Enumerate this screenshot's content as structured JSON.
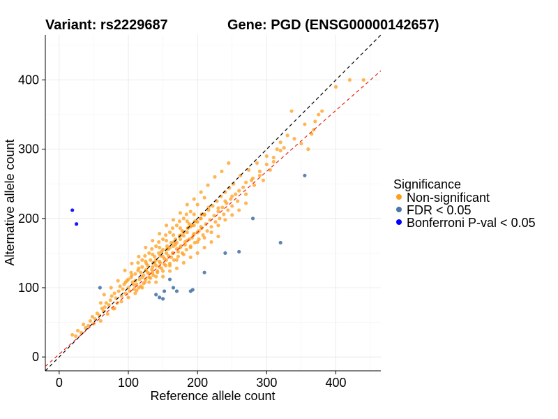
{
  "titles": {
    "variant": "Variant: rs2229687",
    "gene": "Gene: PGD (ENSG00000142657)"
  },
  "chart_data": {
    "type": "scatter",
    "xlabel": "Reference allele count",
    "ylabel": "Alternative allele count",
    "xlim": [
      -20,
      465
    ],
    "ylim": [
      -20,
      465
    ],
    "x_ticks": [
      0,
      100,
      200,
      300,
      400
    ],
    "y_ticks": [
      0,
      100,
      200,
      300,
      400
    ],
    "x_tick_labels": [
      "0",
      "100",
      "200",
      "300",
      "400"
    ],
    "y_tick_labels": [
      "0",
      "100",
      "200",
      "300",
      "400"
    ],
    "grid": true,
    "legend": {
      "title": "Significance",
      "position": "right",
      "entries": [
        "Non-significant",
        "FDR < 0.05",
        "Bonferroni P-val < 0.05"
      ]
    },
    "colors": {
      "Non-significant": "#FF9E1B",
      "FDR < 0.05": "#4A77A8",
      "Bonferroni P-val < 0.05": "#0000FF",
      "identity_line": "#000000",
      "fit_line": "#E8231A"
    },
    "reference_lines": [
      {
        "type": "identity",
        "slope": 1.0,
        "intercept": 0,
        "style": "dashed",
        "color": "#000000"
      },
      {
        "type": "fit",
        "slope": 0.88,
        "intercept": 4,
        "style": "dashed",
        "color": "#E8231A"
      }
    ],
    "series": [
      {
        "name": "Non-significant",
        "points": [
          [
            19,
            32
          ],
          [
            24,
            30
          ],
          [
            27,
            38
          ],
          [
            32,
            35
          ],
          [
            35,
            47
          ],
          [
            38,
            42
          ],
          [
            42,
            45
          ],
          [
            45,
            52
          ],
          [
            48,
            58
          ],
          [
            50,
            48
          ],
          [
            52,
            55
          ],
          [
            55,
            63
          ],
          [
            58,
            60
          ],
          [
            60,
            52
          ],
          [
            62,
            70
          ],
          [
            64,
            66
          ],
          [
            66,
            72
          ],
          [
            68,
            78
          ],
          [
            70,
            62
          ],
          [
            72,
            75
          ],
          [
            74,
            82
          ],
          [
            76,
            88
          ],
          [
            78,
            70
          ],
          [
            80,
            92
          ],
          [
            82,
            85
          ],
          [
            84,
            78
          ],
          [
            86,
            95
          ],
          [
            88,
            102
          ],
          [
            90,
            88
          ],
          [
            92,
            98
          ],
          [
            94,
            105
          ],
          [
            96,
            92
          ],
          [
            98,
            110
          ],
          [
            100,
            100
          ],
          [
            102,
            95
          ],
          [
            104,
            115
          ],
          [
            106,
            108
          ],
          [
            108,
            98
          ],
          [
            110,
            120
          ],
          [
            112,
            105
          ],
          [
            114,
            125
          ],
          [
            116,
            112
          ],
          [
            118,
            102
          ],
          [
            120,
            130
          ],
          [
            122,
            118
          ],
          [
            124,
            108
          ],
          [
            126,
            135
          ],
          [
            128,
            122
          ],
          [
            130,
            115
          ],
          [
            132,
            140
          ],
          [
            134,
            126
          ],
          [
            136,
            118
          ],
          [
            138,
            145
          ],
          [
            140,
            132
          ],
          [
            142,
            122
          ],
          [
            144,
            150
          ],
          [
            146,
            136
          ],
          [
            148,
            128
          ],
          [
            150,
            155
          ],
          [
            152,
            142
          ],
          [
            154,
            132
          ],
          [
            156,
            160
          ],
          [
            158,
            146
          ],
          [
            160,
            135
          ],
          [
            162,
            165
          ],
          [
            164,
            150
          ],
          [
            166,
            140
          ],
          [
            168,
            170
          ],
          [
            170,
            156
          ],
          [
            172,
            145
          ],
          [
            174,
            175
          ],
          [
            176,
            160
          ],
          [
            178,
            150
          ],
          [
            180,
            180
          ],
          [
            182,
            166
          ],
          [
            184,
            155
          ],
          [
            186,
            186
          ],
          [
            188,
            170
          ],
          [
            190,
            160
          ],
          [
            192,
            190
          ],
          [
            194,
            176
          ],
          [
            196,
            165
          ],
          [
            198,
            196
          ],
          [
            200,
            180
          ],
          [
            202,
            170
          ],
          [
            204,
            200
          ],
          [
            206,
            186
          ],
          [
            208,
            176
          ],
          [
            210,
            206
          ],
          [
            212,
            192
          ],
          [
            214,
            182
          ],
          [
            216,
            212
          ],
          [
            218,
            198
          ],
          [
            220,
            188
          ],
          [
            222,
            218
          ],
          [
            224,
            204
          ],
          [
            226,
            195
          ],
          [
            228,
            225
          ],
          [
            230,
            210
          ],
          [
            232,
            200
          ],
          [
            234,
            232
          ],
          [
            236,
            216
          ],
          [
            238,
            206
          ],
          [
            240,
            238
          ],
          [
            242,
            222
          ],
          [
            244,
            212
          ],
          [
            246,
            244
          ],
          [
            248,
            228
          ],
          [
            250,
            218
          ],
          [
            252,
            250
          ],
          [
            255,
            235
          ],
          [
            258,
            225
          ],
          [
            262,
            262
          ],
          [
            266,
            245
          ],
          [
            270,
            235
          ],
          [
            274,
            270
          ],
          [
            278,
            255
          ],
          [
            282,
            248
          ],
          [
            286,
            280
          ],
          [
            290,
            262
          ],
          [
            295,
            255
          ],
          [
            300,
            290
          ],
          [
            305,
            270
          ],
          [
            310,
            288
          ],
          [
            315,
            300
          ],
          [
            320,
            310
          ],
          [
            325,
            302
          ],
          [
            330,
            320
          ],
          [
            336,
            355
          ],
          [
            340,
            315
          ],
          [
            350,
            308
          ],
          [
            355,
            336
          ],
          [
            360,
            300
          ],
          [
            365,
            322
          ],
          [
            368,
            328
          ],
          [
            370,
            340
          ],
          [
            375,
            350
          ],
          [
            380,
            355
          ],
          [
            400,
            390
          ],
          [
            420,
            400
          ],
          [
            440,
            400
          ],
          [
            60,
            78
          ],
          [
            65,
            90
          ],
          [
            75,
            100
          ],
          [
            85,
            110
          ],
          [
            95,
            125
          ],
          [
            105,
            135
          ],
          [
            115,
            145
          ],
          [
            125,
            158
          ],
          [
            135,
            168
          ],
          [
            145,
            178
          ],
          [
            155,
            190
          ],
          [
            165,
            198
          ],
          [
            175,
            208
          ],
          [
            185,
            220
          ],
          [
            195,
            228
          ],
          [
            205,
            238
          ],
          [
            215,
            248
          ],
          [
            225,
            260
          ],
          [
            235,
            268
          ],
          [
            245,
            280
          ],
          [
            80,
            70
          ],
          [
            90,
            80
          ],
          [
            100,
            86
          ],
          [
            110,
            92
          ],
          [
            120,
            100
          ],
          [
            130,
            108
          ],
          [
            140,
            116
          ],
          [
            150,
            124
          ],
          [
            160,
            132
          ],
          [
            170,
            140
          ],
          [
            180,
            148
          ],
          [
            190,
            158
          ],
          [
            200,
            166
          ],
          [
            210,
            172
          ],
          [
            220,
            180
          ],
          [
            230,
            190
          ],
          [
            240,
            198
          ],
          [
            250,
            205
          ],
          [
            260,
            212
          ],
          [
            270,
            222
          ],
          [
            110,
            110
          ],
          [
            120,
            115
          ],
          [
            125,
            125
          ],
          [
            130,
            120
          ],
          [
            135,
            130
          ],
          [
            140,
            140
          ],
          [
            145,
            138
          ],
          [
            150,
            145
          ],
          [
            155,
            150
          ],
          [
            160,
            158
          ],
          [
            165,
            160
          ],
          [
            170,
            165
          ],
          [
            175,
            170
          ],
          [
            180,
            175
          ],
          [
            185,
            180
          ],
          [
            190,
            188
          ],
          [
            195,
            190
          ],
          [
            200,
            195
          ],
          [
            205,
            200
          ],
          [
            210,
            205
          ],
          [
            115,
            100
          ],
          [
            125,
            112
          ],
          [
            135,
            122
          ],
          [
            145,
            130
          ],
          [
            155,
            140
          ],
          [
            165,
            150
          ],
          [
            175,
            158
          ],
          [
            185,
            168
          ],
          [
            195,
            178
          ],
          [
            205,
            188
          ],
          [
            120,
            140
          ],
          [
            130,
            150
          ],
          [
            140,
            160
          ],
          [
            150,
            170
          ],
          [
            160,
            180
          ],
          [
            170,
            190
          ],
          [
            180,
            200
          ],
          [
            190,
            210
          ],
          [
            200,
            220
          ],
          [
            210,
            230
          ],
          [
            105,
            118
          ],
          [
            115,
            128
          ],
          [
            125,
            138
          ],
          [
            135,
            148
          ],
          [
            145,
            158
          ],
          [
            155,
            168
          ],
          [
            165,
            176
          ],
          [
            175,
            186
          ],
          [
            185,
            196
          ],
          [
            195,
            206
          ],
          [
            100,
            112
          ],
          [
            108,
            104
          ],
          [
            118,
            122
          ],
          [
            128,
            132
          ],
          [
            138,
            136
          ],
          [
            148,
            152
          ],
          [
            158,
            156
          ],
          [
            168,
            162
          ],
          [
            178,
            182
          ],
          [
            188,
            192
          ],
          [
            112,
            96
          ],
          [
            122,
            106
          ],
          [
            132,
            114
          ],
          [
            142,
            124
          ],
          [
            152,
            134
          ],
          [
            162,
            144
          ],
          [
            172,
            152
          ],
          [
            182,
            162
          ],
          [
            192,
            172
          ],
          [
            202,
            182
          ],
          [
            96,
            108
          ],
          [
            104,
            122
          ],
          [
            114,
            136
          ],
          [
            124,
            146
          ],
          [
            134,
            156
          ],
          [
            144,
            166
          ],
          [
            154,
            176
          ],
          [
            164,
            186
          ],
          [
            174,
            196
          ],
          [
            184,
            206
          ],
          [
            126,
            126
          ],
          [
            136,
            136
          ],
          [
            146,
            146
          ],
          [
            156,
            156
          ],
          [
            166,
            166
          ],
          [
            176,
            176
          ],
          [
            186,
            186
          ],
          [
            196,
            196
          ],
          [
            206,
            206
          ],
          [
            216,
            216
          ],
          [
            140,
            108
          ],
          [
            150,
            116
          ],
          [
            160,
            124
          ],
          [
            170,
            128
          ],
          [
            180,
            136
          ],
          [
            190,
            144
          ],
          [
            200,
            150
          ],
          [
            210,
            158
          ],
          [
            220,
            166
          ],
          [
            230,
            174
          ],
          [
            230,
            215
          ],
          [
            240,
            225
          ],
          [
            250,
            232
          ],
          [
            260,
            240
          ],
          [
            270,
            252
          ],
          [
            280,
            258
          ],
          [
            290,
            268
          ],
          [
            300,
            278
          ],
          [
            310,
            282
          ],
          [
            320,
            298
          ]
        ]
      },
      {
        "name": "FDR < 0.05",
        "points": [
          [
            59,
            100
          ],
          [
            140,
            90
          ],
          [
            145,
            86
          ],
          [
            150,
            84
          ],
          [
            152,
            95
          ],
          [
            160,
            112
          ],
          [
            165,
            100
          ],
          [
            170,
            95
          ],
          [
            190,
            95
          ],
          [
            193,
            97
          ],
          [
            210,
            122
          ],
          [
            240,
            150
          ],
          [
            260,
            152
          ],
          [
            280,
            200
          ],
          [
            320,
            165
          ],
          [
            355,
            262
          ]
        ]
      },
      {
        "name": "Bonferroni P-val < 0.05",
        "points": [
          [
            19,
            212
          ],
          [
            25,
            192
          ]
        ]
      }
    ]
  }
}
